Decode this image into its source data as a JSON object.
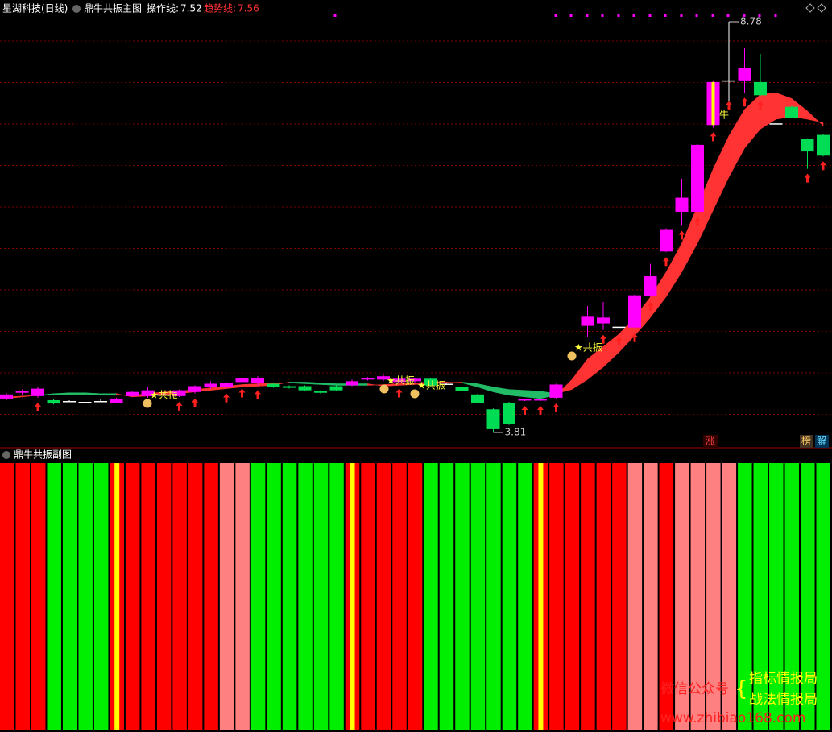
{
  "header": {
    "stock": "星湖科技(日线)",
    "indicator": "鼎牛共振主图",
    "legend": [
      {
        "label": "操作线:",
        "color": "#ffffff"
      },
      {
        "label": "趋势线:",
        "color": "#ff3333"
      }
    ]
  },
  "chart_data": {
    "type": "candlestick",
    "open": [
      4.22,
      4.29,
      4.25,
      4.2,
      4.19,
      4.18,
      4.19,
      4.17,
      4.25,
      4.25,
      4.27,
      4.25,
      4.3,
      4.36,
      4.36,
      4.42,
      4.41,
      4.4,
      4.37,
      4.37,
      4.31,
      4.37,
      4.38,
      4.45,
      4.45,
      4.42,
      4.43,
      4.46,
      4.4,
      4.36,
      4.27,
      4.09,
      4.17,
      4.2,
      4.2,
      4.23,
      null,
      5.1,
      5.13,
      5.09,
      5.08,
      5.46,
      6.0,
      6.48,
      6.48,
      7.53,
      8.07,
      8.07,
      8.05,
      7.55,
      7.75,
      7.36,
      7.41
    ],
    "close": [
      4.27,
      4.31,
      4.34,
      4.16,
      4.19,
      4.18,
      4.19,
      4.22,
      4.3,
      4.32,
      4.27,
      4.32,
      4.37,
      4.4,
      4.41,
      4.47,
      4.47,
      4.36,
      4.35,
      4.32,
      4.29,
      4.32,
      4.43,
      4.47,
      4.49,
      4.46,
      4.46,
      4.38,
      4.4,
      4.31,
      4.17,
      3.85,
      3.91,
      4.21,
      4.21,
      4.39,
      null,
      5.21,
      5.2,
      5.09,
      5.47,
      5.7,
      6.27,
      6.65,
      7.29,
      8.05,
      8.07,
      8.22,
      7.89,
      7.55,
      7.62,
      7.21,
      7.16
    ],
    "high": [
      4.29,
      4.33,
      4.36,
      4.21,
      4.2,
      4.19,
      4.21,
      4.23,
      4.31,
      4.36,
      4.29,
      4.33,
      4.38,
      4.43,
      4.42,
      4.48,
      4.49,
      4.41,
      4.38,
      4.38,
      4.32,
      4.38,
      4.45,
      4.48,
      4.51,
      4.47,
      4.47,
      4.47,
      4.41,
      4.37,
      4.28,
      4.1,
      4.18,
      4.22,
      4.22,
      4.4,
      null,
      5.34,
      5.39,
      5.19,
      5.48,
      5.85,
      6.28,
      6.88,
      7.3,
      8.07,
      8.78,
      8.46,
      8.39,
      7.56,
      7.76,
      7.37,
      7.42
    ],
    "low": [
      4.2,
      4.27,
      4.23,
      4.15,
      4.18,
      4.17,
      4.18,
      4.16,
      4.24,
      4.23,
      4.25,
      4.24,
      4.28,
      4.34,
      4.34,
      4.4,
      4.38,
      4.35,
      4.34,
      4.31,
      4.28,
      4.31,
      4.37,
      4.44,
      4.43,
      4.4,
      4.41,
      4.37,
      4.39,
      4.3,
      4.16,
      3.81,
      3.9,
      4.19,
      4.19,
      4.22,
      null,
      4.97,
      5.05,
      5.03,
      5.07,
      5.45,
      5.99,
      6.31,
      6.47,
      7.5,
      7.78,
      7.92,
      7.88,
      7.54,
      7.61,
      7.0,
      7.15
    ],
    "series": [
      {
        "values": [
          4.24,
          4.25,
          4.26,
          4.27,
          4.27,
          4.27,
          4.26,
          4.26,
          4.26,
          4.28,
          4.3,
          4.31,
          4.33,
          4.35,
          4.37,
          4.39,
          4.4,
          4.41,
          4.41,
          4.4,
          4.39,
          4.38,
          4.38,
          4.38,
          4.39,
          4.4,
          4.41,
          4.42,
          4.42,
          4.41,
          4.36,
          4.3,
          4.26,
          4.24,
          4.22,
          4.26,
          4.45,
          4.7,
          4.85,
          5.0,
          5.2,
          5.45,
          5.75,
          6.1,
          6.55,
          7.0,
          7.4,
          7.72,
          7.9,
          7.92,
          7.85,
          7.7,
          7.52
        ]
      },
      {
        "values": [
          4.22,
          4.24,
          4.26,
          4.28,
          4.29,
          4.29,
          4.28,
          4.28,
          4.24,
          4.25,
          4.27,
          4.28,
          4.3,
          4.32,
          4.34,
          4.36,
          4.37,
          4.38,
          4.42,
          4.42,
          4.41,
          4.4,
          4.4,
          4.4,
          4.37,
          4.38,
          4.39,
          4.4,
          4.41,
          4.42,
          4.4,
          4.36,
          4.33,
          4.32,
          4.31,
          4.28,
          4.33,
          4.45,
          4.6,
          4.78,
          4.98,
          5.2,
          5.45,
          5.75,
          6.1,
          6.5,
          6.9,
          7.25,
          7.48,
          7.6,
          7.63,
          7.6,
          7.56
        ]
      }
    ],
    "up_color": "#ff00ff",
    "down_color": "#00dd55",
    "ribbon_up": "#ff3333",
    "ribbon_down": "#22bb66",
    "ylim": [
      3.81,
      8.78
    ],
    "annotations": [
      "★共振",
      "★共振",
      "★共振",
      "★共振"
    ],
    "tag": "牛"
  },
  "buttons": [
    "涨",
    "榜",
    "解"
  ],
  "sub": {
    "title": "鼎牛共振副图",
    "bar_colors": [
      "#ff0000",
      "#ff0000",
      "#ff0000",
      "#00ee00",
      "#00ee00",
      "#00ee00",
      "#00ee00",
      "#ffff00",
      "#ff0000",
      "#ff0000",
      "#ff0000",
      "#ff0000",
      "#ff0000",
      "#ff0000",
      "#ff8080",
      "#ff8080",
      "#00ee00",
      "#00ee00",
      "#00ee00",
      "#00ee00",
      "#00ee00",
      "#00ee00",
      "#ffff00",
      "#ff0000",
      "#ff0000",
      "#ff0000",
      "#ff0000",
      "#00ee00",
      "#00ee00",
      "#00ee00",
      "#00ee00",
      "#00ee00",
      "#00ee00",
      "#00ee00",
      "#ffff00",
      "#ff0000",
      "#ff0000",
      "#ff0000",
      "#ff0000",
      "#ff0000",
      "#ff8080",
      "#ff8080",
      "#ff0000",
      "#ff8080",
      "#ff8080",
      "#ff8080",
      "#ff8080",
      "#00ee00",
      "#00ee00",
      "#00ee00",
      "#00ee00",
      "#00ee00",
      "#00ee00"
    ]
  },
  "watermark": {
    "wechat": "微信公众号",
    "name1": "指标情报局",
    "name2": "战法情报局",
    "url": "www.zhibiao168.com"
  }
}
